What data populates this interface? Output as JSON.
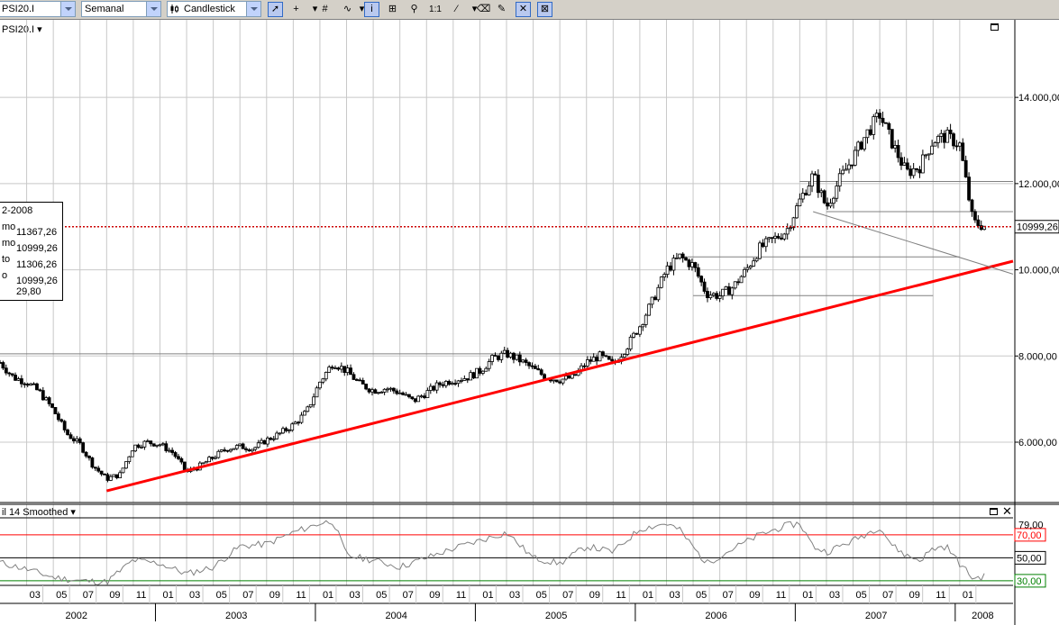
{
  "toolbar": {
    "symbol": "PSI20.I",
    "period": "Semanal",
    "chart_style": "Candlestick",
    "tools": [
      {
        "icon": "pointer-icon",
        "glyph": "➚",
        "active": true
      },
      {
        "icon": "crosshair-icon",
        "glyph": "+",
        "active": false
      },
      {
        "icon": "dropdown-icon",
        "glyph": "▾",
        "active": false
      },
      {
        "icon": "grid-icon",
        "glyph": "#",
        "active": false
      },
      {
        "icon": "indicator-icon",
        "glyph": "∿",
        "active": false
      },
      {
        "icon": "dropdown-icon",
        "glyph": "▾",
        "active": false
      },
      {
        "icon": "info-icon",
        "glyph": "i",
        "active": true
      },
      {
        "icon": "zoom-box-icon",
        "glyph": "⊞",
        "active": false
      },
      {
        "icon": "zoom-icon",
        "glyph": "⚲",
        "active": false
      },
      {
        "icon": "one-to-one-icon",
        "glyph": "1:1",
        "active": false
      },
      {
        "icon": "line-draw-icon",
        "glyph": "⁄",
        "active": false
      },
      {
        "icon": "dropdown-icon",
        "glyph": "▾",
        "active": false
      },
      {
        "icon": "eraser-icon",
        "glyph": "⌫",
        "active": false
      },
      {
        "icon": "properties-icon",
        "glyph": "✎",
        "active": false
      },
      {
        "icon": "snap-icon",
        "glyph": "✕",
        "active": true
      },
      {
        "icon": "cross-hatch-icon",
        "glyph": "⊠",
        "active": true
      }
    ]
  },
  "price_pane": {
    "symbol_label": "PSI20.I ▾",
    "last_price_label": "10999,26",
    "ohlc": [
      {
        "label": "2-2008",
        "value": ""
      },
      {
        "label": "mo",
        "value": "11367,26"
      },
      {
        "label": "mo",
        "value": "10999,26"
      },
      {
        "label": "to",
        "value": "11306,26"
      },
      {
        "label": "o",
        "value": "10999,26"
      },
      {
        "label": "",
        "value": "29,80"
      }
    ]
  },
  "indicator_pane": {
    "label": "il 14 Smoothed ▾",
    "close_glyph": "✕"
  },
  "colors": {
    "bull_candle": "#ffffff",
    "bear_candle": "#000000",
    "trendline": "#ff0000",
    "last_price_line": "#cc0000",
    "level_line": "#808080",
    "rsi_line": "#808080",
    "overbought": "#ff0000",
    "midline": "#000000",
    "oversold": "#008000",
    "gridline": "#c8c8c8"
  },
  "chart_data": [
    {
      "type": "candlestick",
      "ylim": [
        4600,
        15800
      ],
      "y_ticks": [
        6000,
        8000,
        10000,
        12000,
        14000
      ],
      "y_tick_labels": [
        "6.000,00",
        "8.000,00",
        "10.000,00",
        "12.000,00",
        "14.000,00"
      ],
      "last_price": 10999.26,
      "grid": true,
      "x_start": "2002-01",
      "x_end": "2008-05",
      "price_path": [
        [
          "2002-01",
          7850
        ],
        [
          "2002-02",
          7500
        ],
        [
          "2002-03",
          7400
        ],
        [
          "2002-04",
          7150
        ],
        [
          "2002-05",
          6750
        ],
        [
          "2002-06",
          6200
        ],
        [
          "2002-07",
          5950
        ],
        [
          "2002-08",
          5450
        ],
        [
          "2002-09",
          5150
        ],
        [
          "2002-10",
          5250
        ],
        [
          "2002-11",
          5900
        ],
        [
          "2002-12",
          6000
        ],
        [
          "2003-01",
          5950
        ],
        [
          "2003-02",
          5750
        ],
        [
          "2003-03",
          5300
        ],
        [
          "2003-04",
          5450
        ],
        [
          "2003-05",
          5650
        ],
        [
          "2003-06",
          5850
        ],
        [
          "2003-07",
          5900
        ],
        [
          "2003-08",
          5850
        ],
        [
          "2003-09",
          6050
        ],
        [
          "2003-10",
          6200
        ],
        [
          "2003-11",
          6400
        ],
        [
          "2003-12",
          6700
        ],
        [
          "2004-01",
          7400
        ],
        [
          "2004-02",
          7850
        ],
        [
          "2004-03",
          7650
        ],
        [
          "2004-04",
          7350
        ],
        [
          "2004-05",
          7200
        ],
        [
          "2004-06",
          7250
        ],
        [
          "2004-07",
          7150
        ],
        [
          "2004-08",
          6950
        ],
        [
          "2004-09",
          7150
        ],
        [
          "2004-10",
          7350
        ],
        [
          "2004-11",
          7450
        ],
        [
          "2004-12",
          7500
        ],
        [
          "2005-01",
          7650
        ],
        [
          "2005-02",
          7950
        ],
        [
          "2005-03",
          8050
        ],
        [
          "2005-04",
          7900
        ],
        [
          "2005-05",
          7700
        ],
        [
          "2005-06",
          7500
        ],
        [
          "2005-07",
          7450
        ],
        [
          "2005-08",
          7500
        ],
        [
          "2005-09",
          7850
        ],
        [
          "2005-10",
          8000
        ],
        [
          "2005-11",
          7800
        ],
        [
          "2005-12",
          8200
        ],
        [
          "2006-01",
          8700
        ],
        [
          "2006-02",
          9300
        ],
        [
          "2006-03",
          10000
        ],
        [
          "2006-04",
          10300
        ],
        [
          "2006-05",
          10100
        ],
        [
          "2006-06",
          9450
        ],
        [
          "2006-07",
          9400
        ],
        [
          "2006-08",
          9600
        ],
        [
          "2006-09",
          10000
        ],
        [
          "2006-10",
          10500
        ],
        [
          "2006-11",
          10700
        ],
        [
          "2006-12",
          10900
        ],
        [
          "2007-01",
          11600
        ],
        [
          "2007-02",
          12200
        ],
        [
          "2007-03",
          11450
        ],
        [
          "2007-04",
          12100
        ],
        [
          "2007-05",
          12600
        ],
        [
          "2007-06",
          13150
        ],
        [
          "2007-07",
          13600
        ],
        [
          "2007-08",
          12900
        ],
        [
          "2007-09",
          12250
        ],
        [
          "2007-10",
          12400
        ],
        [
          "2007-11",
          13000
        ],
        [
          "2007-12",
          13100
        ],
        [
          "2008-01",
          12900
        ],
        [
          "2008-02",
          11100
        ],
        [
          "2008-03",
          11000
        ]
      ],
      "horizontal_lines": [
        {
          "y": 8050,
          "from": "2002-01",
          "to": "2006-01"
        },
        {
          "y": 12050,
          "from": "2007-01",
          "to": "2008-05"
        },
        {
          "y": 11350,
          "from": "2007-03",
          "to": "2008-05"
        },
        {
          "y": 10300,
          "from": "2006-04",
          "to": "2008-01"
        },
        {
          "y": 9400,
          "from": "2006-05",
          "to": "2007-11"
        }
      ],
      "trendlines": [
        {
          "from": [
            "2002-09",
            4870
          ],
          "to": [
            "2008-05",
            10200
          ],
          "color": "red"
        },
        {
          "from": [
            "2007-02",
            11350
          ],
          "to": [
            "2008-05",
            9900
          ],
          "color": "gray"
        }
      ]
    },
    {
      "type": "line",
      "ylim": [
        26,
        84
      ],
      "y_ticks": [
        30,
        50,
        70,
        79
      ],
      "y_tick_labels": [
        "30,00",
        "50,00",
        "70,00",
        "79,00"
      ],
      "levels": [
        30,
        50,
        70
      ],
      "rsi_path": [
        [
          "2002-01",
          46
        ],
        [
          "2002-03",
          40
        ],
        [
          "2002-05",
          33
        ],
        [
          "2002-07",
          30
        ],
        [
          "2002-09",
          29
        ],
        [
          "2002-11",
          48
        ],
        [
          "2003-01",
          45
        ],
        [
          "2003-03",
          36
        ],
        [
          "2003-05",
          42
        ],
        [
          "2003-07",
          60
        ],
        [
          "2003-09",
          62
        ],
        [
          "2003-11",
          72
        ],
        [
          "2004-01",
          80
        ],
        [
          "2004-02",
          82
        ],
        [
          "2004-03",
          52
        ],
        [
          "2004-05",
          48
        ],
        [
          "2004-07",
          42
        ],
        [
          "2004-09",
          50
        ],
        [
          "2004-11",
          58
        ],
        [
          "2005-01",
          65
        ],
        [
          "2005-03",
          72
        ],
        [
          "2005-05",
          50
        ],
        [
          "2005-07",
          45
        ],
        [
          "2005-09",
          60
        ],
        [
          "2005-11",
          55
        ],
        [
          "2006-01",
          75
        ],
        [
          "2006-03",
          80
        ],
        [
          "2006-04",
          74
        ],
        [
          "2006-06",
          45
        ],
        [
          "2006-08",
          58
        ],
        [
          "2006-10",
          70
        ],
        [
          "2006-12",
          78
        ],
        [
          "2007-01",
          80
        ],
        [
          "2007-02",
          60
        ],
        [
          "2007-03",
          55
        ],
        [
          "2007-05",
          65
        ],
        [
          "2007-07",
          77
        ],
        [
          "2007-08",
          60
        ],
        [
          "2007-09",
          52
        ],
        [
          "2007-10",
          48
        ],
        [
          "2007-11",
          58
        ],
        [
          "2007-12",
          60
        ],
        [
          "2008-01",
          45
        ],
        [
          "2008-02",
          32
        ],
        [
          "2008-03",
          34
        ]
      ]
    }
  ],
  "x_axis": {
    "months": [
      "03",
      "05",
      "07",
      "09",
      "11",
      "01",
      "03",
      "05",
      "07",
      "09",
      "11",
      "01",
      "03",
      "05",
      "07",
      "09",
      "11",
      "01",
      "03",
      "05",
      "07",
      "09",
      "11",
      "01",
      "03",
      "05",
      "07",
      "09",
      "11",
      "01",
      "03",
      "05",
      "07",
      "09",
      "11",
      "01"
    ],
    "years": [
      "2002",
      "2003",
      "2004",
      "2005",
      "2006",
      "2007",
      "2008"
    ]
  }
}
